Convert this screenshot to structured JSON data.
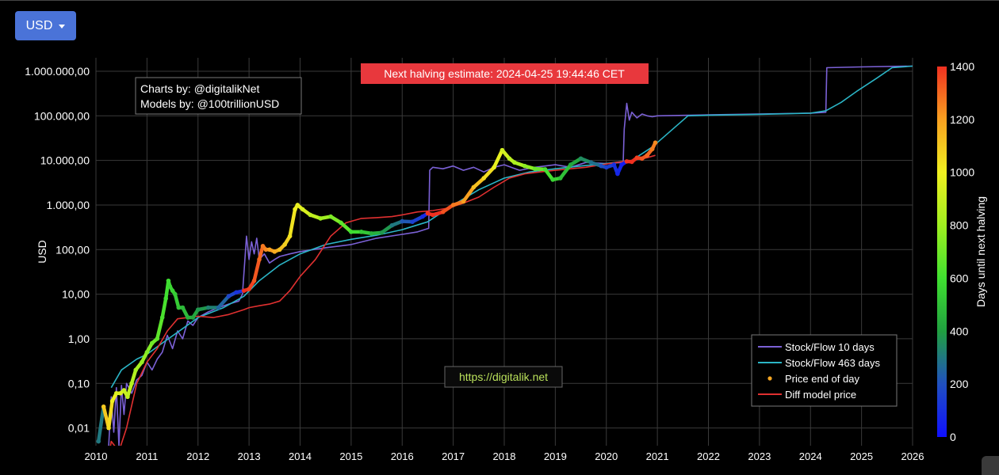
{
  "toolbar": {
    "currency_label": "USD"
  },
  "chart_data": {
    "type": "line",
    "title": "",
    "xlabel": "",
    "ylabel": "USD",
    "yscale": "log",
    "xlim": [
      2010,
      2026
    ],
    "ylim": [
      0.004,
      2000000
    ],
    "x_ticks": [
      "2010",
      "2011",
      "2012",
      "2013",
      "2014",
      "2015",
      "2016",
      "2017",
      "2018",
      "2019",
      "2020",
      "2021",
      "2022",
      "2023",
      "2024",
      "2025",
      "2026"
    ],
    "y_ticks": [
      {
        "value": 0.01,
        "label": "0,01"
      },
      {
        "value": 0.1,
        "label": "0,10"
      },
      {
        "value": 1,
        "label": "1,00"
      },
      {
        "value": 10,
        "label": "10,00"
      },
      {
        "value": 100,
        "label": "100,00"
      },
      {
        "value": 1000,
        "label": "1.000,00"
      },
      {
        "value": 10000,
        "label": "10.000,00"
      },
      {
        "value": 100000,
        "label": "100.000,00"
      },
      {
        "value": 1000000,
        "label": "1.000.000,00"
      }
    ],
    "grid": true,
    "legend_position": "bottom-right",
    "colorbar": {
      "label": "Days until next halving",
      "min": 0,
      "max": 1400,
      "ticks": [
        0,
        200,
        400,
        600,
        800,
        1000,
        1200,
        1400
      ],
      "colorscale": [
        "#1010ff",
        "#2050c0",
        "#20a040",
        "#40e030",
        "#a0f020",
        "#f0f020",
        "#f8a020",
        "#f03020"
      ]
    },
    "series": [
      {
        "name": "Stock/Flow 10 days",
        "kind": "line",
        "color": "#7b61d6",
        "x": [
          2010.25,
          2010.3,
          2010.35,
          2010.4,
          2010.45,
          2010.5,
          2010.55,
          2010.6,
          2010.7,
          2010.8,
          2010.9,
          2011.0,
          2011.1,
          2011.2,
          2011.3,
          2011.4,
          2011.5,
          2011.6,
          2011.7,
          2011.8,
          2011.9,
          2012.0,
          2012.2,
          2012.4,
          2012.6,
          2012.8,
          2012.87,
          2012.9,
          2012.95,
          2013.0,
          2013.05,
          2013.1,
          2013.15,
          2013.2,
          2013.3,
          2013.4,
          2013.5,
          2013.6,
          2013.8,
          2014.0,
          2014.5,
          2015.0,
          2015.5,
          2016.0,
          2016.3,
          2016.52,
          2016.54,
          2016.6,
          2016.8,
          2017.0,
          2017.2,
          2017.4,
          2017.6,
          2017.8,
          2018.0,
          2018.3,
          2018.6,
          2019.0,
          2019.3,
          2019.6,
          2020.0,
          2020.33,
          2020.35,
          2020.4,
          2020.45,
          2020.5,
          2020.6,
          2020.7,
          2020.8,
          2020.9,
          2021.0,
          2022.0,
          2024.0,
          2024.3,
          2024.32,
          2025.0,
          2026.0
        ],
        "y": [
          0.004,
          0.05,
          0.008,
          0.08,
          0.004,
          0.09,
          0.02,
          0.1,
          0.06,
          0.12,
          0.15,
          0.3,
          0.2,
          0.35,
          0.5,
          1.2,
          0.6,
          1.5,
          1.0,
          2.5,
          2.0,
          3.0,
          4.0,
          5.0,
          6.0,
          7.0,
          10,
          30,
          200,
          60,
          150,
          80,
          180,
          60,
          80,
          50,
          60,
          70,
          80,
          90,
          110,
          130,
          180,
          220,
          250,
          300,
          6000,
          7000,
          6500,
          7500,
          6000,
          7000,
          5500,
          7000,
          8000,
          6000,
          7000,
          8000,
          7000,
          9000,
          8500,
          9000,
          50000,
          190000,
          80000,
          120000,
          90000,
          110000,
          100000,
          95000,
          100000,
          105000,
          115000,
          120000,
          1200000,
          1250000,
          1300000
        ]
      },
      {
        "name": "Stock/Flow 463 days",
        "kind": "line",
        "color": "#2bb5c6",
        "x": [
          2010.3,
          2010.5,
          2010.8,
          2011.0,
          2011.3,
          2011.6,
          2012.0,
          2012.5,
          2012.9,
          2013.2,
          2013.6,
          2014.0,
          2014.5,
          2015.0,
          2015.5,
          2016.0,
          2016.5,
          2017.0,
          2017.5,
          2018.0,
          2018.5,
          2019.0,
          2019.5,
          2020.0,
          2020.5,
          2020.9,
          2021.3,
          2021.6,
          2022.0,
          2023.0,
          2024.0,
          2024.3,
          2024.6,
          2024.9,
          2025.3,
          2025.6,
          2026.0
        ],
        "y": [
          0.08,
          0.2,
          0.35,
          0.45,
          0.8,
          1.4,
          3.0,
          5.0,
          9.0,
          20.0,
          45.0,
          80.0,
          130,
          170,
          210,
          280,
          420,
          1000,
          2200,
          4000,
          5500,
          6500,
          7500,
          8500,
          10000,
          20000,
          50000,
          100000,
          103000,
          108000,
          115000,
          130000,
          200000,
          350000,
          700000,
          1200000,
          1300000
        ]
      },
      {
        "name": "Price end of day",
        "kind": "scatter",
        "color": "#f5a623",
        "x": [
          2010.05,
          2010.15,
          2010.25,
          2010.32,
          2010.4,
          2010.48,
          2010.55,
          2010.62,
          2010.7,
          2010.78,
          2010.9,
          2011.0,
          2011.1,
          2011.2,
          2011.3,
          2011.37,
          2011.42,
          2011.45,
          2011.5,
          2011.55,
          2011.62,
          2011.7,
          2011.8,
          2011.9,
          2012.0,
          2012.2,
          2012.4,
          2012.6,
          2012.75,
          2012.9,
          2013.0,
          2013.1,
          2013.2,
          2013.27,
          2013.33,
          2013.4,
          2013.5,
          2013.6,
          2013.7,
          2013.8,
          2013.9,
          2013.95,
          2014.05,
          2014.2,
          2014.4,
          2014.6,
          2014.8,
          2015.0,
          2015.2,
          2015.4,
          2015.6,
          2015.8,
          2016.0,
          2016.2,
          2016.4,
          2016.5,
          2016.6,
          2016.8,
          2017.0,
          2017.2,
          2017.4,
          2017.6,
          2017.8,
          2017.96,
          2018.1,
          2018.2,
          2018.4,
          2018.6,
          2018.8,
          2018.95,
          2019.1,
          2019.3,
          2019.5,
          2019.7,
          2019.9,
          2020.0,
          2020.15,
          2020.22,
          2020.3,
          2020.4,
          2020.5,
          2020.6,
          2020.7,
          2020.8,
          2020.9,
          2020.96
        ],
        "y": [
          0.005,
          0.03,
          0.01,
          0.04,
          0.06,
          0.06,
          0.07,
          0.05,
          0.1,
          0.2,
          0.3,
          0.5,
          0.8,
          1.0,
          3.0,
          8.0,
          20.0,
          15.0,
          12.0,
          10.0,
          5.0,
          5.0,
          3.0,
          3.0,
          4.5,
          5.0,
          5.0,
          9.0,
          11.0,
          12.0,
          13.0,
          20.0,
          60.0,
          120.0,
          100.0,
          100.0,
          90.0,
          100.0,
          130.0,
          200.0,
          800.0,
          1000.0,
          800.0,
          600.0,
          500.0,
          550.0,
          400.0,
          250.0,
          250.0,
          230.0,
          240.0,
          350.0,
          430.0,
          420.0,
          550.0,
          650.0,
          600.0,
          700.0,
          1000.0,
          1200.0,
          2500.0,
          4000.0,
          7000.0,
          17000.0,
          11000.0,
          9000.0,
          7500.0,
          6500.0,
          6300.0,
          3700.0,
          4000.0,
          8000.0,
          11000.0,
          9000.0,
          7500.0,
          7000.0,
          8000.0,
          5000.0,
          8000.0,
          9500.0,
          9300.0,
          11500.0,
          11000.0,
          13000.0,
          18000.0,
          25000.0
        ],
        "days_to_halving": [
          300,
          1100,
          1050,
          1000,
          950,
          950,
          900,
          880,
          850,
          820,
          780,
          740,
          700,
          660,
          620,
          600,
          590,
          570,
          560,
          540,
          520,
          480,
          450,
          420,
          380,
          320,
          250,
          170,
          110,
          1400,
          1370,
          1330,
          1300,
          1270,
          1240,
          1200,
          1170,
          1120,
          1080,
          1030,
          1000,
          980,
          940,
          880,
          800,
          730,
          660,
          590,
          520,
          450,
          380,
          300,
          220,
          150,
          80,
          1450,
          1420,
          1340,
          1270,
          1200,
          1120,
          1050,
          980,
          920,
          870,
          830,
          760,
          680,
          610,
          560,
          500,
          420,
          350,
          280,
          200,
          150,
          100,
          70,
          40,
          1440,
          1400,
          1370,
          1330,
          1300,
          1260,
          1240
        ]
      },
      {
        "name": "Diff model price",
        "kind": "line",
        "color": "#e03030",
        "x": [
          2010.2,
          2010.3,
          2010.45,
          2010.6,
          2010.8,
          2011.0,
          2011.2,
          2011.4,
          2011.6,
          2011.8,
          2012.0,
          2012.3,
          2012.6,
          2012.9,
          2013.0,
          2013.2,
          2013.4,
          2013.6,
          2013.8,
          2014.0,
          2014.3,
          2014.6,
          2014.9,
          2015.2,
          2015.5,
          2015.8,
          2016.0,
          2016.3,
          2016.6,
          2016.9,
          2017.2,
          2017.5,
          2017.8,
          2018.1,
          2018.4,
          2018.7,
          2019.0,
          2019.3,
          2019.6,
          2019.9,
          2020.2,
          2020.5,
          2020.8,
          2020.96
        ],
        "y": [
          0.001,
          0.005,
          0.003,
          0.01,
          0.1,
          0.3,
          0.6,
          1.5,
          2.8,
          3.0,
          3.2,
          3.0,
          3.5,
          4.5,
          5.0,
          5.5,
          6.0,
          7.0,
          12.0,
          25.0,
          60.0,
          200.0,
          400.0,
          500.0,
          520.0,
          550.0,
          600.0,
          700.0,
          750.0,
          850.0,
          1100.0,
          1500.0,
          2500.0,
          4000.0,
          5000.0,
          5500.0,
          6000.0,
          6500.0,
          7000.0,
          8000.0,
          9000.0,
          10000.0,
          11500.0,
          13000.0
        ]
      }
    ],
    "annotations": [
      {
        "text": "Charts by: @digitalikNet",
        "position": "top-left"
      },
      {
        "text": "Models by: @100trillionUSD",
        "position": "top-left"
      },
      {
        "text": "Next halving estimate: 2024-04-25 19:44:46 CET",
        "position": "top-center"
      },
      {
        "text": "https://digitalik.net",
        "position": "bottom-center"
      }
    ]
  }
}
